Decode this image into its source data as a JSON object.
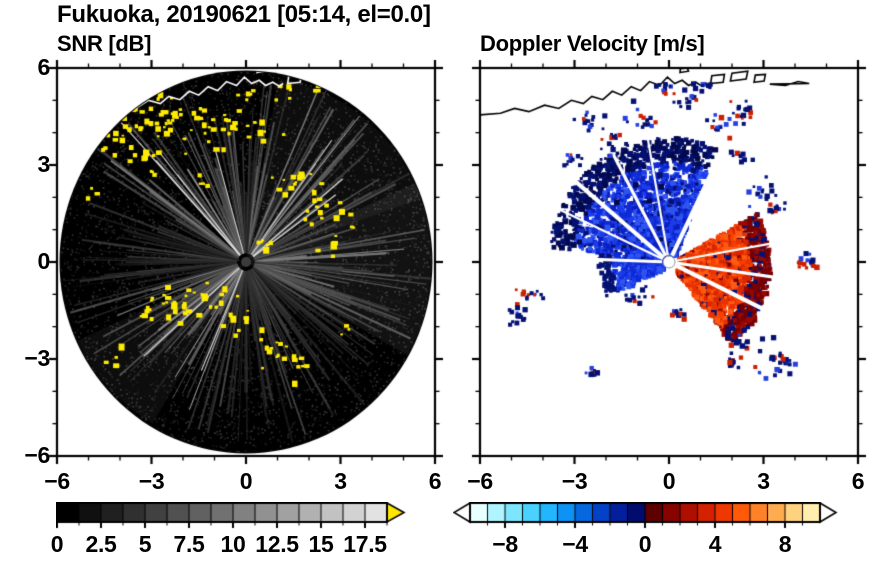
{
  "title": "Fukuoka, 20190621 [05:14, el=0.0]",
  "panels": [
    {
      "title": "SNR [dB]"
    },
    {
      "title": "Doppler Velocity [m/s]"
    }
  ],
  "chart_data": [
    {
      "type": "heatmap",
      "title": "SNR [dB]",
      "xlabel": "",
      "ylabel": "",
      "xlim": [
        -6,
        6
      ],
      "ylim": [
        -6,
        6
      ],
      "xticks": [
        -6,
        -3,
        0,
        3,
        6
      ],
      "xtick_labels": [
        "−6",
        "−3",
        "0",
        "3",
        "6"
      ],
      "yticks": [
        6,
        3,
        0,
        -3,
        -6
      ],
      "ytick_labels": [
        "6",
        "3",
        "0",
        "−3",
        "−6"
      ],
      "minor_tick_step": 1,
      "grid": false,
      "colorbar": {
        "range": [
          0,
          18.75
        ],
        "cells": 15,
        "tick_values": [
          0,
          2.5,
          5,
          7.5,
          10,
          12.5,
          15,
          17.5
        ],
        "tick_labels": [
          "0",
          "2.5",
          "5",
          "7.5",
          "10",
          "12.5",
          "15",
          "17.5"
        ],
        "low_color": "#000000",
        "high_color": "#e2e2e2",
        "over_arrow_color": "#ffe600"
      },
      "scene": {
        "disk_radius": 5.92,
        "disk_color": "#000000",
        "center_dot_color": "#3c3c3c",
        "echo_color": "#ffec00",
        "noise_dots": 5200,
        "ray_count": 330,
        "bright_sectors": [
          [
            15,
            85
          ],
          [
            95,
            150
          ],
          [
            195,
            245
          ],
          [
            -35,
            10
          ]
        ],
        "bright_rays": [
          38,
          52,
          105,
          130,
          205,
          214,
          222,
          248
        ],
        "haze_sectors": [
          [
            -30,
            25,
            0.07,
            1
          ],
          [
            20,
            80,
            0.05,
            1
          ],
          [
            205,
            240,
            0.05,
            1
          ]
        ],
        "echo_clusters": [
          [
            -3.3,
            4.3,
            0.55,
            26
          ],
          [
            -2.3,
            4.65,
            0.4,
            16
          ],
          [
            -4.05,
            3.6,
            0.35,
            10
          ],
          [
            -1.25,
            3.95,
            0.4,
            12
          ],
          [
            -0.5,
            4.45,
            0.35,
            10
          ],
          [
            0.3,
            4.15,
            0.28,
            8
          ],
          [
            -2.85,
            3.0,
            0.25,
            6
          ],
          [
            -3.7,
            4.7,
            0.25,
            6
          ],
          [
            1.55,
            2.45,
            0.42,
            14
          ],
          [
            2.2,
            1.7,
            0.35,
            10
          ],
          [
            2.85,
            1.2,
            0.28,
            8
          ],
          [
            0.45,
            0.6,
            0.2,
            6
          ],
          [
            -0.95,
            -0.9,
            0.32,
            8
          ],
          [
            -1.8,
            -1.3,
            0.42,
            12
          ],
          [
            -2.6,
            -1.05,
            0.35,
            10
          ],
          [
            -3.35,
            -1.7,
            0.26,
            6
          ],
          [
            -0.6,
            -1.85,
            0.32,
            8
          ],
          [
            0.95,
            -2.6,
            0.42,
            12
          ],
          [
            1.5,
            -3.1,
            0.28,
            7
          ],
          [
            -4.3,
            -2.9,
            0.2,
            4
          ],
          [
            2.6,
            0.35,
            0.16,
            4
          ],
          [
            -4.95,
            2.2,
            0.16,
            3
          ],
          [
            0.1,
            5.2,
            0.22,
            6
          ],
          [
            1.0,
            5.35,
            0.22,
            5
          ],
          [
            2.3,
            5.5,
            0.18,
            4
          ],
          [
            -1.4,
            2.5,
            0.18,
            4
          ],
          [
            3.1,
            -2.2,
            0.16,
            3
          ]
        ]
      }
    },
    {
      "type": "heatmap",
      "title": "Doppler Velocity [m/s]",
      "xlabel": "",
      "ylabel": "",
      "xlim": [
        -6,
        6
      ],
      "ylim": [
        -6,
        6
      ],
      "xticks": [
        -6,
        -3,
        0,
        3,
        6
      ],
      "xtick_labels": [
        "−6",
        "−3",
        "0",
        "3",
        "6"
      ],
      "yticks": [
        6,
        3,
        0,
        -3,
        -6
      ],
      "ytick_labels": [],
      "minor_tick_step": 1,
      "grid": false,
      "colorbar": {
        "range": [
          -10,
          10
        ],
        "cells": 20,
        "tick_values": [
          -8,
          -4,
          0,
          4,
          8
        ],
        "tick_labels": [
          "−8",
          "−4",
          "0",
          "4",
          "8"
        ],
        "colors": [
          "#e6ffff",
          "#b0f4ff",
          "#7ce6ff",
          "#4ad2ff",
          "#22b6ff",
          "#0d92f5",
          "#0668e0",
          "#0342c6",
          "#021f9e",
          "#010c6e",
          "#5c0000",
          "#860300",
          "#ae0f00",
          "#d42100",
          "#ee3800",
          "#ff5a0a",
          "#ff8228",
          "#ffab4f",
          "#ffd27f",
          "#ffeeb0"
        ],
        "under_arrow_color": "#ffffff",
        "over_arrow_color": "#ffffff"
      },
      "scene": {
        "toward_color": "#0e2bd6",
        "away_color": "#e83200",
        "center_dot_color": "#ffffff",
        "blue_wedges": [
          {
            "a0": 68,
            "a1": 172,
            "rmax": 3.9,
            "n": 2300,
            "colors": [
              "#1c3cea",
              "#0e2bd6",
              "#2f54f2",
              "#0a1ec2"
            ],
            "edge": [
              "#041173",
              "#02094f"
            ]
          },
          {
            "a0": 172,
            "a1": 208,
            "rmax": 2.3,
            "n": 330,
            "colors": [
              "#1c3cea",
              "#0e2bd6",
              "#2f54f2"
            ],
            "edge": [
              "#041173"
            ]
          }
        ],
        "red_wedges": [
          {
            "a0": -52,
            "a1": 30,
            "rmax": 3.15,
            "n": 2500,
            "colors": [
              "#f54000",
              "#e83200",
              "#ff5a14",
              "#d92600"
            ],
            "edge": [
              "#760000",
              "#9a0800",
              "#041173"
            ]
          }
        ],
        "white_gap_angles": [
          100,
          118,
          140,
          155,
          178,
          64,
          10,
          -8,
          -26
        ],
        "speck_clusters": [
          [
            1.6,
            4.35,
            0.35
          ],
          [
            2.35,
            4.75,
            0.3
          ],
          [
            0.55,
            5.05,
            0.25
          ],
          [
            -0.9,
            4.5,
            0.3
          ],
          [
            -1.85,
            3.85,
            0.3
          ],
          [
            -2.6,
            4.35,
            0.25
          ],
          [
            -0.2,
            5.45,
            0.2
          ],
          [
            1.1,
            5.5,
            0.2
          ],
          [
            -4.55,
            -0.95,
            0.35
          ],
          [
            -4.95,
            -1.55,
            0.3
          ],
          [
            2.45,
            -2.45,
            0.35
          ],
          [
            3.25,
            -3.25,
            0.35
          ],
          [
            3.7,
            -2.95,
            0.2
          ],
          [
            1.9,
            -3.05,
            0.15
          ],
          [
            -2.5,
            -3.35,
            0.15
          ],
          [
            4.3,
            0.2,
            0.3
          ],
          [
            2.9,
            2.15,
            0.3
          ],
          [
            3.45,
            1.7,
            0.2
          ],
          [
            -1.05,
            -1.05,
            0.25
          ],
          [
            0.2,
            -1.6,
            0.15
          ],
          [
            2.2,
            3.3,
            0.2
          ],
          [
            -3.15,
            3.2,
            0.2
          ]
        ],
        "speck_primary": "#041173",
        "speck_secondary": "#cc2000",
        "speck_tertiary": "#2440e0"
      }
    }
  ],
  "coastline": {
    "left_panel_color": "#ffffff",
    "right_panel_color": "#000000",
    "mainline": [
      [
        -6.0,
        4.55
      ],
      [
        -5.35,
        4.6
      ],
      [
        -4.9,
        4.75
      ],
      [
        -4.45,
        4.65
      ],
      [
        -3.95,
        4.85
      ],
      [
        -3.5,
        4.75
      ],
      [
        -3.1,
        5.0
      ],
      [
        -2.72,
        4.9
      ],
      [
        -2.45,
        5.12
      ],
      [
        -2.1,
        5.02
      ],
      [
        -1.8,
        5.28
      ],
      [
        -1.5,
        5.16
      ],
      [
        -1.2,
        5.42
      ],
      [
        -0.9,
        5.3
      ],
      [
        -0.62,
        5.58
      ],
      [
        -0.3,
        5.46
      ],
      [
        -0.05,
        5.72
      ],
      [
        0.18,
        5.52
      ],
      [
        0.42,
        5.62
      ],
      [
        0.62,
        5.46
      ],
      [
        0.85,
        5.56
      ],
      [
        1.05,
        5.44
      ],
      [
        1.18,
        5.52
      ]
    ],
    "islands": [
      [
        [
          1.32,
          5.52
        ],
        [
          1.72,
          5.56
        ],
        [
          1.76,
          5.8
        ],
        [
          1.36,
          5.76
        ]
      ],
      [
        [
          1.95,
          5.6
        ],
        [
          2.45,
          5.66
        ],
        [
          2.5,
          5.9
        ],
        [
          2.0,
          5.84
        ]
      ],
      [
        [
          2.7,
          5.56
        ],
        [
          3.02,
          5.6
        ],
        [
          3.06,
          5.8
        ],
        [
          2.74,
          5.78
        ]
      ],
      [
        [
          3.2,
          5.5
        ],
        [
          3.7,
          5.46
        ],
        [
          4.1,
          5.58
        ],
        [
          4.45,
          5.52
        ]
      ],
      [
        [
          0.35,
          5.86
        ],
        [
          0.62,
          5.9
        ],
        [
          0.58,
          6.0
        ],
        [
          0.36,
          5.98
        ]
      ]
    ]
  }
}
